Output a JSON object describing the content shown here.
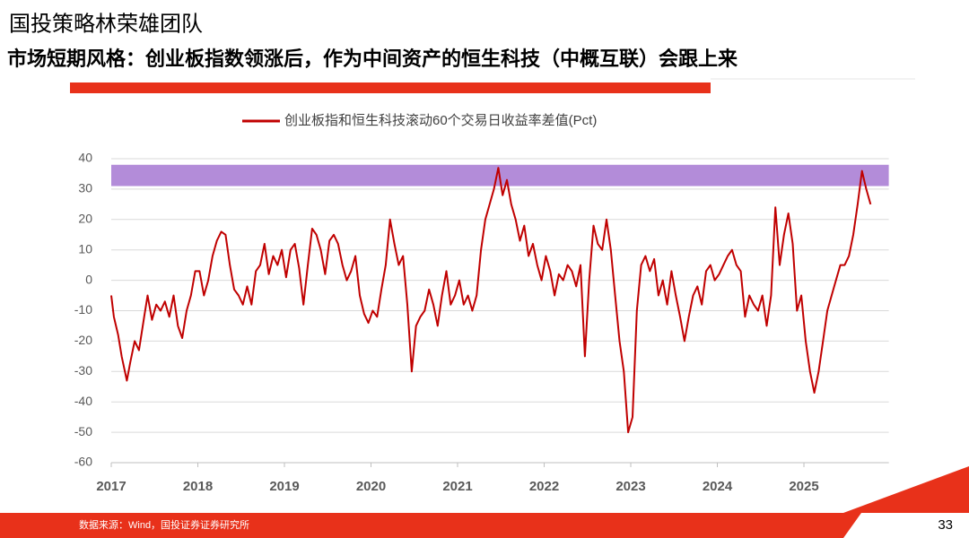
{
  "header": {
    "title": "国投策略林荣雄团队",
    "subtitle": "市场短期风格：创业板指数领涨后，作为中间资产的恒生科技（中概互联）会跟上来"
  },
  "footer": {
    "source": "数据来源：Wind，国投证券证券研究所",
    "page": 33
  },
  "chart_data": {
    "type": "line",
    "x": [
      2017.0,
      2017.03,
      2017.08,
      2017.12,
      2017.18,
      2017.22,
      2017.27,
      2017.32,
      2017.38,
      2017.42,
      2017.47,
      2017.52,
      2017.57,
      2017.62,
      2017.67,
      2017.72,
      2017.77,
      2017.82,
      2017.87,
      2017.92,
      2017.97,
      2018.02,
      2018.07,
      2018.12,
      2018.17,
      2018.22,
      2018.27,
      2018.32,
      2018.37,
      2018.42,
      2018.47,
      2018.52,
      2018.57,
      2018.62,
      2018.67,
      2018.72,
      2018.77,
      2018.82,
      2018.87,
      2018.92,
      2018.97,
      2019.02,
      2019.07,
      2019.12,
      2019.17,
      2019.22,
      2019.27,
      2019.32,
      2019.37,
      2019.42,
      2019.47,
      2019.52,
      2019.57,
      2019.62,
      2019.67,
      2019.72,
      2019.77,
      2019.82,
      2019.87,
      2019.92,
      2019.97,
      2020.02,
      2020.07,
      2020.12,
      2020.17,
      2020.22,
      2020.27,
      2020.32,
      2020.37,
      2020.42,
      2020.47,
      2020.52,
      2020.57,
      2020.62,
      2020.67,
      2020.72,
      2020.77,
      2020.82,
      2020.87,
      2020.92,
      2020.97,
      2021.02,
      2021.07,
      2021.12,
      2021.17,
      2021.22,
      2021.27,
      2021.32,
      2021.37,
      2021.42,
      2021.47,
      2021.52,
      2021.57,
      2021.62,
      2021.67,
      2021.72,
      2021.77,
      2021.82,
      2021.87,
      2021.92,
      2021.97,
      2022.02,
      2022.07,
      2022.12,
      2022.17,
      2022.22,
      2022.27,
      2022.32,
      2022.37,
      2022.42,
      2022.47,
      2022.52,
      2022.57,
      2022.62,
      2022.67,
      2022.72,
      2022.77,
      2022.82,
      2022.87,
      2022.92,
      2022.97,
      2023.02,
      2023.07,
      2023.12,
      2023.17,
      2023.22,
      2023.27,
      2023.32,
      2023.37,
      2023.42,
      2023.47,
      2023.52,
      2023.57,
      2023.62,
      2023.67,
      2023.72,
      2023.77,
      2023.82,
      2023.87,
      2023.92,
      2023.97,
      2024.02,
      2024.07,
      2024.12,
      2024.17,
      2024.22,
      2024.27,
      2024.32,
      2024.37,
      2024.42,
      2024.47,
      2024.52,
      2024.57,
      2024.62,
      2024.67,
      2024.72,
      2024.77,
      2024.82,
      2024.87,
      2024.92,
      2024.97,
      2025.02,
      2025.07,
      2025.12,
      2025.17,
      2025.22,
      2025.27,
      2025.32,
      2025.37,
      2025.42,
      2025.47,
      2025.52,
      2025.57,
      2025.62,
      2025.67,
      2025.72,
      2025.77
    ],
    "series": [
      {
        "name": "创业板指和恒生科技滚动60个交易日收益率差值(Pct)",
        "color": "#c00000",
        "values": [
          -5,
          -12,
          -18,
          -25,
          -33,
          -27,
          -20,
          -23,
          -12,
          -5,
          -13,
          -8,
          -10,
          -7,
          -12,
          -5,
          -15,
          -19,
          -10,
          -5,
          3,
          3,
          -5,
          0,
          8,
          13,
          16,
          15,
          5,
          -3,
          -5,
          -8,
          -2,
          -8,
          3,
          5,
          12,
          2,
          8,
          5,
          10,
          1,
          10,
          12,
          4,
          -8,
          5,
          17,
          15,
          10,
          2,
          13,
          15,
          12,
          5,
          0,
          3,
          8,
          -5,
          -11,
          -14,
          -10,
          -12,
          -3,
          5,
          20,
          12,
          5,
          8,
          -8,
          -30,
          -15,
          -12,
          -10,
          -3,
          -8,
          -15,
          -5,
          3,
          -8,
          -5,
          0,
          -8,
          -5,
          -10,
          -5,
          10,
          20,
          25,
          30,
          37,
          28,
          33,
          25,
          20,
          13,
          18,
          8,
          12,
          5,
          0,
          8,
          3,
          -5,
          2,
          0,
          5,
          3,
          -2,
          5,
          -25,
          0,
          18,
          12,
          10,
          20,
          10,
          -5,
          -20,
          -30,
          -50,
          -45,
          -10,
          5,
          8,
          3,
          7,
          -5,
          0,
          -8,
          3,
          -5,
          -12,
          -20,
          -12,
          -5,
          -2,
          -8,
          3,
          5,
          0,
          2,
          5,
          8,
          10,
          5,
          3,
          -12,
          -5,
          -8,
          -10,
          -5,
          -15,
          -5,
          24,
          5,
          15,
          22,
          12,
          -10,
          -5,
          -20,
          -30,
          -37,
          -30,
          -20,
          -10,
          -5,
          0,
          5,
          5,
          8,
          15,
          25,
          36,
          30,
          25
        ]
      }
    ],
    "xlim": [
      2017,
      2025.98
    ],
    "xticks": [
      2017,
      2018,
      2019,
      2020,
      2021,
      2022,
      2023,
      2024,
      2025
    ],
    "ylim": [
      -60,
      40
    ],
    "yticks": [
      -60,
      -50,
      -40,
      -30,
      -20,
      -10,
      0,
      10,
      20,
      30,
      40
    ],
    "grid": true,
    "highlight_band": {
      "from": 31,
      "to": 38,
      "color": "#9966cc"
    }
  }
}
